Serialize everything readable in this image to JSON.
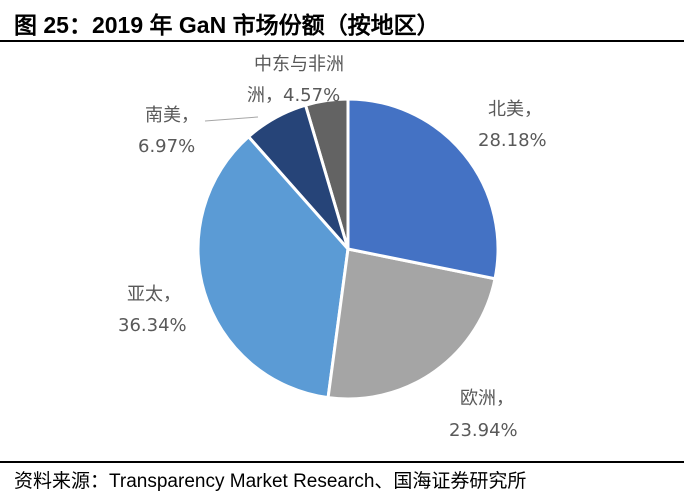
{
  "title": "图 25：2019 年 GaN 市场份额（按地区）",
  "source": "资料来源：Transparency Market Research、国海证券研究所",
  "chart_data": {
    "type": "pie",
    "title": "图 25：2019 年 GaN 市场份额（按地区）",
    "start": "12 o'clock, clockwise",
    "slices": [
      {
        "label": "北美",
        "value": 28.18,
        "text": "28.18%",
        "color": "#4472C4"
      },
      {
        "label": "欧洲",
        "value": 23.94,
        "text": "23.94%",
        "color": "#A5A5A5"
      },
      {
        "label": "亚太",
        "value": 36.34,
        "text": "36.34%",
        "color": "#5B9BD5"
      },
      {
        "label": "南美",
        "value": 6.97,
        "text": "6.97%",
        "color": "#264478"
      },
      {
        "label": "中东与非洲",
        "value": 4.57,
        "text": "4.57%",
        "color": "#636363"
      }
    ]
  }
}
